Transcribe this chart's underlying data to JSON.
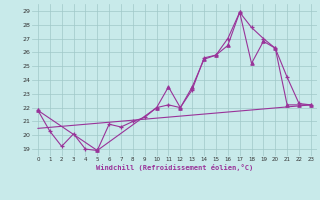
{
  "xlabel": "Windchill (Refroidissement éolien,°C)",
  "background_color": "#c8eaea",
  "line_color": "#993399",
  "grid_color": "#a0c8c8",
  "xlim": [
    -0.5,
    23.5
  ],
  "ylim": [
    18.5,
    29.5
  ],
  "xticks": [
    0,
    1,
    2,
    3,
    4,
    5,
    6,
    7,
    8,
    9,
    10,
    11,
    12,
    13,
    14,
    15,
    16,
    17,
    18,
    19,
    20,
    21,
    22,
    23
  ],
  "yticks": [
    19,
    20,
    21,
    22,
    23,
    24,
    25,
    26,
    27,
    28,
    29
  ],
  "series_main": {
    "x": [
      0,
      1,
      2,
      3,
      4,
      5,
      6,
      7,
      8,
      9,
      10,
      11,
      12,
      13,
      14,
      15,
      16,
      17,
      18,
      19,
      20,
      21,
      22,
      23
    ],
    "y": [
      21.8,
      20.3,
      19.2,
      20.1,
      19.0,
      18.9,
      20.8,
      20.6,
      21.0,
      21.3,
      22.0,
      22.2,
      22.0,
      23.3,
      25.6,
      25.8,
      27.0,
      28.9,
      27.8,
      27.0,
      26.3,
      24.2,
      22.3,
      22.2
    ]
  },
  "series_peak": {
    "x": [
      0,
      5,
      10,
      11,
      12,
      13,
      14,
      15,
      16,
      17,
      18,
      19,
      20,
      21,
      22,
      23
    ],
    "y": [
      21.8,
      18.9,
      22.0,
      23.5,
      22.0,
      23.5,
      25.5,
      25.8,
      26.5,
      28.9,
      25.2,
      26.8,
      26.3,
      22.2,
      22.2,
      22.2
    ]
  },
  "series_trend": {
    "x": [
      0,
      23
    ],
    "y": [
      20.5,
      22.2
    ]
  }
}
